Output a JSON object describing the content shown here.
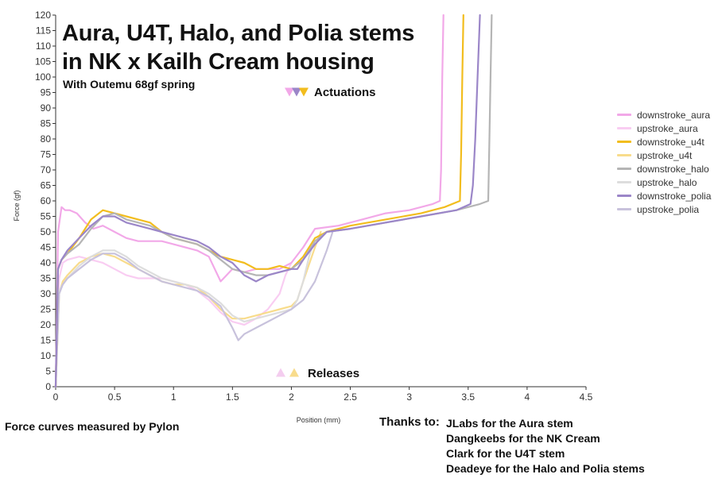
{
  "chart_data": {
    "type": "line",
    "title": "Aura, U4T, Halo, and Polia stems\nin NK x Kailh Cream housing",
    "subtitle": "With Outemu 68gf spring",
    "xlabel": "Position (mm)",
    "ylabel": "Force (gf)",
    "xlim": [
      0,
      4.5
    ],
    "ylim": [
      0,
      120
    ],
    "xticks": [
      "0",
      "0.5",
      "1",
      "1.5",
      "2",
      "2.5",
      "3",
      "3.5",
      "4",
      "4.5"
    ],
    "yticks": [
      "0",
      "5",
      "10",
      "15",
      "20",
      "25",
      "30",
      "35",
      "40",
      "45",
      "50",
      "55",
      "60",
      "65",
      "70",
      "75",
      "80",
      "85",
      "90",
      "95",
      "100",
      "105",
      "110",
      "115",
      "120"
    ],
    "grid": false,
    "legend_position": "right",
    "annotations": {
      "actuations": {
        "label": "Actuations",
        "x": 2.0,
        "y": 95,
        "colors": [
          "#f2a8e8",
          "#9b86c8",
          "#f2bd1e"
        ]
      },
      "releases": {
        "label": "Releases",
        "x": 1.95,
        "y": 4,
        "colors": [
          "#f4cdef",
          "#f8dc8c"
        ]
      }
    },
    "series": [
      {
        "name": "downstroke_aura",
        "color": "#f2a8e8",
        "x": [
          0,
          0.02,
          0.05,
          0.08,
          0.12,
          0.18,
          0.25,
          0.32,
          0.4,
          0.5,
          0.6,
          0.7,
          0.8,
          0.9,
          1.0,
          1.1,
          1.2,
          1.3,
          1.35,
          1.4,
          1.45,
          1.5,
          1.6,
          1.7,
          1.8,
          1.9,
          2.0,
          2.1,
          2.2,
          2.4,
          2.6,
          2.8,
          3.0,
          3.1,
          3.2,
          3.26,
          3.27,
          3.28,
          3.29
        ],
        "y": [
          0,
          50,
          58,
          57,
          57,
          56,
          53,
          51,
          52,
          50,
          48,
          47,
          47,
          47,
          46,
          45,
          44,
          42,
          38,
          34,
          36,
          38,
          37,
          38,
          38,
          38,
          40,
          45,
          51,
          52,
          54,
          56,
          57,
          58,
          59,
          60,
          70,
          100,
          120
        ]
      },
      {
        "name": "upstroke_aura",
        "color": "#f9cdf2",
        "x": [
          0,
          0.03,
          0.06,
          0.1,
          0.2,
          0.3,
          0.4,
          0.5,
          0.6,
          0.7,
          0.8,
          0.9,
          1.0,
          1.1,
          1.2,
          1.3,
          1.4,
          1.5,
          1.6,
          1.7,
          1.8,
          1.9,
          1.95,
          2.0
        ],
        "y": [
          0,
          35,
          40,
          41,
          42,
          41,
          40,
          38,
          36,
          35,
          35,
          35,
          34,
          33,
          31,
          28,
          24,
          21,
          20,
          22,
          25,
          30,
          36,
          40
        ]
      },
      {
        "name": "downstroke_u4t",
        "color": "#f2bd1e",
        "x": [
          0,
          0.02,
          0.05,
          0.1,
          0.2,
          0.3,
          0.4,
          0.5,
          0.6,
          0.7,
          0.8,
          0.9,
          1.0,
          1.1,
          1.2,
          1.3,
          1.4,
          1.5,
          1.6,
          1.7,
          1.8,
          1.9,
          2.0,
          2.1,
          2.2,
          2.3,
          2.5,
          2.8,
          3.1,
          3.3,
          3.43,
          3.44,
          3.45,
          3.46
        ],
        "y": [
          0,
          38,
          41,
          43,
          48,
          54,
          57,
          56,
          55,
          54,
          53,
          50,
          48,
          47,
          46,
          44,
          42,
          41,
          40,
          38,
          38,
          39,
          38,
          42,
          48,
          50,
          52,
          54,
          56,
          58,
          60,
          75,
          100,
          120
        ]
      },
      {
        "name": "upstroke_u4t",
        "color": "#f8dc8c",
        "x": [
          0,
          0.03,
          0.06,
          0.1,
          0.2,
          0.3,
          0.4,
          0.5,
          0.6,
          0.7,
          0.8,
          0.9,
          1.0,
          1.1,
          1.2,
          1.3,
          1.4,
          1.5,
          1.6,
          1.7,
          1.8,
          1.9,
          2.0,
          2.05,
          2.1,
          2.2,
          2.25
        ],
        "y": [
          0,
          30,
          34,
          36,
          40,
          42,
          43,
          42,
          40,
          38,
          36,
          34,
          33,
          33,
          32,
          29,
          25,
          22,
          22,
          23,
          24,
          25,
          26,
          28,
          34,
          45,
          50
        ]
      },
      {
        "name": "downstroke_halo",
        "color": "#b5b5b5",
        "x": [
          0,
          0.02,
          0.05,
          0.1,
          0.2,
          0.3,
          0.4,
          0.5,
          0.6,
          0.7,
          0.8,
          0.9,
          1.0,
          1.1,
          1.2,
          1.3,
          1.4,
          1.5,
          1.6,
          1.7,
          1.8,
          1.9,
          2.0,
          2.1,
          2.2,
          2.3,
          2.5,
          2.8,
          3.1,
          3.4,
          3.6,
          3.67,
          3.68,
          3.69,
          3.7
        ],
        "y": [
          0,
          38,
          41,
          43,
          46,
          51,
          55,
          56,
          54,
          53,
          52,
          50,
          48,
          47,
          46,
          44,
          41,
          38,
          37,
          36,
          36,
          37,
          38,
          41,
          47,
          50,
          51,
          53,
          55,
          57,
          59,
          60,
          80,
          100,
          120
        ]
      },
      {
        "name": "upstroke_halo",
        "color": "#dddddd",
        "x": [
          0,
          0.03,
          0.06,
          0.1,
          0.2,
          0.3,
          0.4,
          0.5,
          0.6,
          0.7,
          0.8,
          0.9,
          1.0,
          1.1,
          1.2,
          1.3,
          1.4,
          1.5,
          1.6,
          1.7,
          1.8,
          1.9,
          2.0,
          2.05,
          2.1,
          2.15,
          2.2
        ],
        "y": [
          0,
          31,
          33,
          35,
          39,
          42,
          44,
          44,
          42,
          39,
          37,
          35,
          34,
          33,
          32,
          30,
          27,
          23,
          21,
          22,
          23,
          24,
          25,
          28,
          34,
          42,
          48
        ]
      },
      {
        "name": "downstroke_polia",
        "color": "#9b86c8",
        "x": [
          0,
          0.02,
          0.05,
          0.1,
          0.2,
          0.3,
          0.4,
          0.5,
          0.6,
          0.7,
          0.8,
          0.9,
          1.0,
          1.1,
          1.2,
          1.3,
          1.4,
          1.5,
          1.6,
          1.7,
          1.8,
          1.9,
          2.0,
          2.05,
          2.1,
          2.2,
          2.3,
          2.5,
          2.8,
          3.1,
          3.4,
          3.52,
          3.54,
          3.56,
          3.58,
          3.6
        ],
        "y": [
          0,
          38,
          41,
          44,
          48,
          52,
          55,
          55,
          53,
          52,
          51,
          50,
          49,
          48,
          47,
          45,
          42,
          40,
          36,
          34,
          36,
          37,
          38,
          38,
          41,
          46,
          50,
          51,
          53,
          55,
          57,
          59,
          65,
          80,
          100,
          120
        ]
      },
      {
        "name": "upstroke_polia",
        "color": "#c8c2dc",
        "x": [
          0,
          0.03,
          0.06,
          0.1,
          0.2,
          0.3,
          0.4,
          0.5,
          0.6,
          0.7,
          0.8,
          0.9,
          1.0,
          1.1,
          1.2,
          1.3,
          1.4,
          1.5,
          1.55,
          1.6,
          1.7,
          1.8,
          1.9,
          2.0,
          2.1,
          2.2,
          2.3,
          2.35
        ],
        "y": [
          0,
          30,
          33,
          35,
          38,
          41,
          43,
          43,
          41,
          38,
          36,
          34,
          33,
          32,
          31,
          29,
          26,
          19,
          15,
          17,
          19,
          21,
          23,
          25,
          28,
          34,
          44,
          50
        ]
      }
    ]
  },
  "footer": {
    "credit": "Force curves measured by Pylon",
    "thanks_label": "Thanks to:",
    "thanks": [
      "JLabs for the Aura stem",
      "Dangkeebs for the NK Cream",
      "Clark for the U4T stem",
      "Deadeye for the Halo and Polia stems"
    ]
  }
}
